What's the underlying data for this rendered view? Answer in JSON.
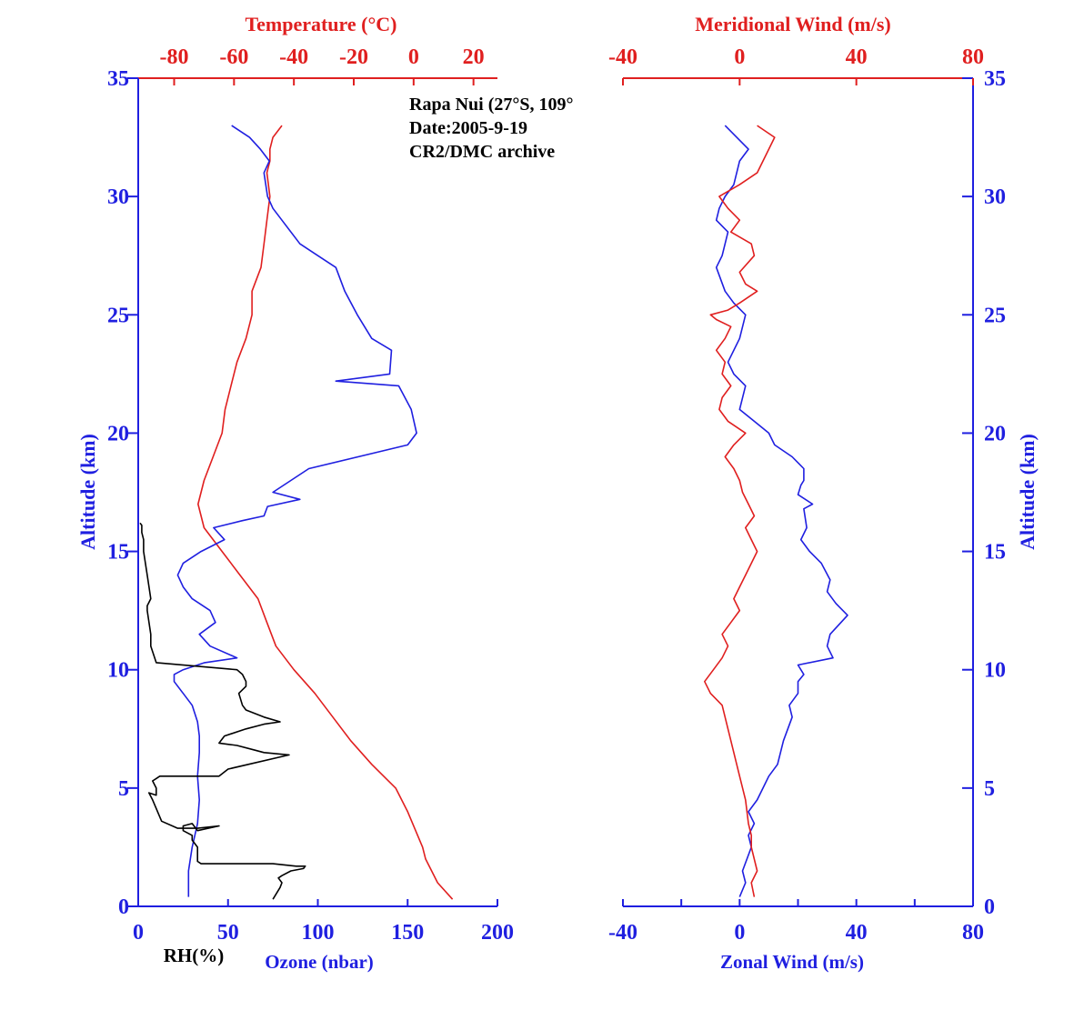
{
  "chart_data": [
    {
      "type": "line",
      "panel": "left",
      "annotation": [
        "Rapa Nui (27°S, 109°",
        "Date:2005-9-19",
        "CR2/DMC archive"
      ],
      "y_axis": {
        "label": "Altitude (km)",
        "range": [
          0,
          35
        ],
        "ticks": [
          "0",
          "5",
          "10",
          "15",
          "20",
          "25",
          "30",
          "35"
        ],
        "color": "#1f1fe0"
      },
      "x_bottom": {
        "label_rh": "RH(%)",
        "label_ozone": "Ozone (nbar)",
        "range": [
          0,
          200
        ],
        "ticks": [
          "0",
          "50",
          "100",
          "150",
          "200"
        ],
        "color": "#1f1fe0"
      },
      "x_top": {
        "label": "Temperature (°C)",
        "range": [
          -92,
          28
        ],
        "ticks": [
          "-80",
          "-60",
          "-40",
          "-20",
          "0",
          "20"
        ],
        "tick_values": [
          -80,
          -60,
          -40,
          -20,
          0,
          20
        ],
        "color": "#e01f1f"
      },
      "series": [
        {
          "name": "Temperature",
          "axis": "top",
          "color": "#e01f1f",
          "x": [
            13,
            8,
            4,
            3,
            -2,
            -6,
            -14,
            -21,
            -27,
            -33,
            -40,
            -46,
            -49,
            -52,
            -58,
            -64,
            -70,
            -72,
            -70,
            -67,
            -64,
            -63,
            -61,
            -59,
            -56,
            -54,
            -54,
            -51,
            -50,
            -49,
            -48,
            -49,
            -48,
            -48,
            -47,
            -44
          ],
          "y": [
            0.3,
            1.0,
            2.0,
            2.5,
            4.0,
            5.0,
            6.0,
            7.0,
            8.0,
            9.0,
            10.0,
            11.0,
            12.0,
            13.0,
            14.0,
            15.0,
            16.0,
            17.0,
            18.0,
            19.0,
            20.0,
            21.0,
            22.0,
            23.0,
            24.0,
            25.0,
            26.0,
            27.0,
            28.0,
            29.0,
            30.0,
            31.0,
            31.5,
            32.0,
            32.5,
            33.0
          ]
        },
        {
          "name": "Ozone",
          "axis": "bottom",
          "color": "#1f1fe0",
          "x": [
            28,
            28,
            30,
            33,
            34,
            33,
            34,
            34,
            33,
            30,
            25,
            20,
            20,
            25,
            37,
            55,
            40,
            34,
            43,
            40,
            30,
            25,
            22,
            25,
            35,
            48,
            42,
            58,
            70,
            72,
            90,
            75,
            95,
            150,
            155,
            152,
            145,
            110,
            140,
            141,
            130,
            122,
            115,
            110,
            100,
            90,
            80,
            75,
            72,
            70,
            73,
            68,
            62,
            52
          ],
          "y": [
            0.4,
            1.5,
            2.5,
            3.5,
            4.5,
            5.5,
            6.5,
            7.2,
            7.8,
            8.5,
            9.0,
            9.5,
            9.8,
            10.0,
            10.3,
            10.5,
            11.0,
            11.5,
            12.0,
            12.5,
            13.0,
            13.5,
            14.0,
            14.5,
            15.0,
            15.5,
            16.0,
            16.3,
            16.5,
            16.9,
            17.2,
            17.5,
            18.5,
            19.5,
            20.0,
            21.0,
            22.0,
            22.2,
            22.5,
            23.5,
            24.0,
            25.0,
            26.0,
            27.0,
            27.5,
            28.0,
            29.0,
            29.5,
            30.0,
            31.0,
            31.5,
            32.0,
            32.5,
            33.0
          ]
        },
        {
          "name": "RH",
          "axis": "bottom",
          "color": "#000000",
          "x": [
            75,
            79,
            80,
            78,
            80,
            85,
            92,
            93,
            88,
            75,
            35,
            33,
            33,
            30,
            30,
            25,
            25,
            30,
            33,
            45,
            33,
            30,
            22,
            13,
            8,
            6,
            10,
            10,
            8,
            10,
            12,
            25,
            45,
            50,
            84,
            70,
            65,
            55,
            45,
            48,
            60,
            70,
            79,
            70,
            60,
            58,
            56,
            60,
            60,
            58,
            55,
            10,
            7,
            7,
            5,
            5,
            7,
            5,
            3,
            3,
            2,
            2,
            1
          ],
          "y": [
            0.3,
            0.8,
            1.0,
            1.2,
            1.3,
            1.5,
            1.6,
            1.7,
            1.7,
            1.8,
            1.8,
            1.9,
            2.5,
            2.8,
            3.0,
            3.2,
            3.4,
            3.5,
            3.2,
            3.4,
            3.3,
            3.3,
            3.3,
            3.6,
            4.5,
            4.8,
            4.7,
            5.0,
            5.3,
            5.4,
            5.5,
            5.5,
            5.5,
            5.8,
            6.4,
            6.5,
            6.6,
            6.8,
            6.9,
            7.2,
            7.5,
            7.7,
            7.8,
            8.0,
            8.3,
            8.5,
            9.0,
            9.3,
            9.5,
            9.8,
            10.0,
            10.3,
            11.0,
            11.5,
            12.5,
            12.7,
            13.0,
            14.0,
            15.0,
            15.5,
            15.8,
            16.1,
            16.2
          ]
        }
      ]
    },
    {
      "type": "line",
      "panel": "right",
      "y_axis": {
        "label": "Altitude (km)",
        "range": [
          0,
          35
        ],
        "ticks": [
          "0",
          "5",
          "10",
          "15",
          "20",
          "25",
          "30",
          "35"
        ],
        "color": "#1f1fe0"
      },
      "x_bottom": {
        "label": "Zonal Wind (m/s)",
        "range": [
          -40,
          80
        ],
        "ticks": [
          "-40",
          "0",
          "40",
          "80"
        ],
        "tick_values": [
          -40,
          0,
          40,
          80
        ],
        "color": "#1f1fe0"
      },
      "x_top": {
        "label": "Meridional Wind (m/s)",
        "range": [
          -40,
          80
        ],
        "ticks": [
          "-40",
          "0",
          "40",
          "80"
        ],
        "tick_values": [
          -40,
          0,
          40,
          80
        ],
        "color": "#e01f1f"
      },
      "series": [
        {
          "name": "Zonal Wind",
          "axis": "bottom",
          "color": "#1f1fe0",
          "x": [
            0,
            2,
            1,
            4,
            3,
            5,
            3,
            6,
            8,
            10,
            13,
            15,
            18,
            17,
            20,
            20,
            22,
            20,
            32,
            30,
            31,
            37,
            33,
            30,
            31,
            28,
            24,
            21,
            23,
            22,
            25,
            20,
            21,
            22,
            22,
            18,
            12,
            10,
            5,
            0,
            2,
            -2,
            -4,
            0,
            2,
            -2,
            -5,
            -8,
            -6,
            -4,
            -8,
            -7,
            -5,
            -2,
            0,
            3,
            -5
          ],
          "y": [
            0.4,
            1.0,
            1.5,
            2.5,
            3.0,
            3.5,
            4.0,
            4.5,
            5.0,
            5.5,
            6.0,
            7.0,
            8.0,
            8.5,
            9.0,
            9.5,
            9.8,
            10.2,
            10.5,
            11.0,
            11.5,
            12.3,
            12.8,
            13.3,
            13.8,
            14.5,
            15.0,
            15.5,
            16.0,
            16.8,
            17.0,
            17.4,
            17.8,
            18.0,
            18.5,
            19.0,
            19.5,
            20.0,
            20.5,
            21.0,
            22.0,
            22.5,
            23.0,
            24.0,
            25.0,
            25.5,
            26.0,
            27.0,
            27.5,
            28.5,
            29.0,
            29.5,
            30.0,
            30.5,
            31.5,
            32.0,
            33.0
          ]
        },
        {
          "name": "Meridional Wind",
          "axis": "top",
          "color": "#e01f1f",
          "x": [
            5,
            4,
            6,
            4,
            4,
            3,
            2,
            0,
            -2,
            -4,
            -6,
            -10,
            -12,
            -9,
            -6,
            -4,
            -6,
            -3,
            0,
            -2,
            0,
            2,
            4,
            6,
            4,
            2,
            5,
            3,
            1,
            0,
            -2,
            -5,
            -2,
            2,
            -4,
            -7,
            -6,
            -3,
            -6,
            -5,
            -8,
            -5,
            -3,
            -8,
            -10,
            -4,
            0,
            6,
            2,
            0,
            5,
            4,
            -3,
            0,
            -4,
            -7,
            0,
            6,
            10,
            12,
            6
          ],
          "y": [
            0.4,
            1.0,
            1.5,
            2.5,
            3.0,
            3.5,
            4.5,
            5.5,
            6.5,
            7.5,
            8.5,
            9.0,
            9.5,
            10.0,
            10.5,
            11.0,
            11.5,
            12.0,
            12.5,
            13.0,
            13.5,
            14.0,
            14.5,
            15.0,
            15.5,
            16.0,
            16.5,
            17.0,
            17.5,
            18.0,
            18.5,
            19.0,
            19.5,
            20.0,
            20.5,
            21.0,
            21.5,
            22.0,
            22.5,
            23.0,
            23.5,
            24.0,
            24.5,
            24.8,
            25.0,
            25.2,
            25.5,
            26.0,
            26.3,
            26.8,
            27.5,
            28.0,
            28.5,
            29.0,
            29.5,
            30.0,
            30.5,
            31.0,
            32.0,
            32.5,
            33.0
          ]
        }
      ]
    }
  ]
}
